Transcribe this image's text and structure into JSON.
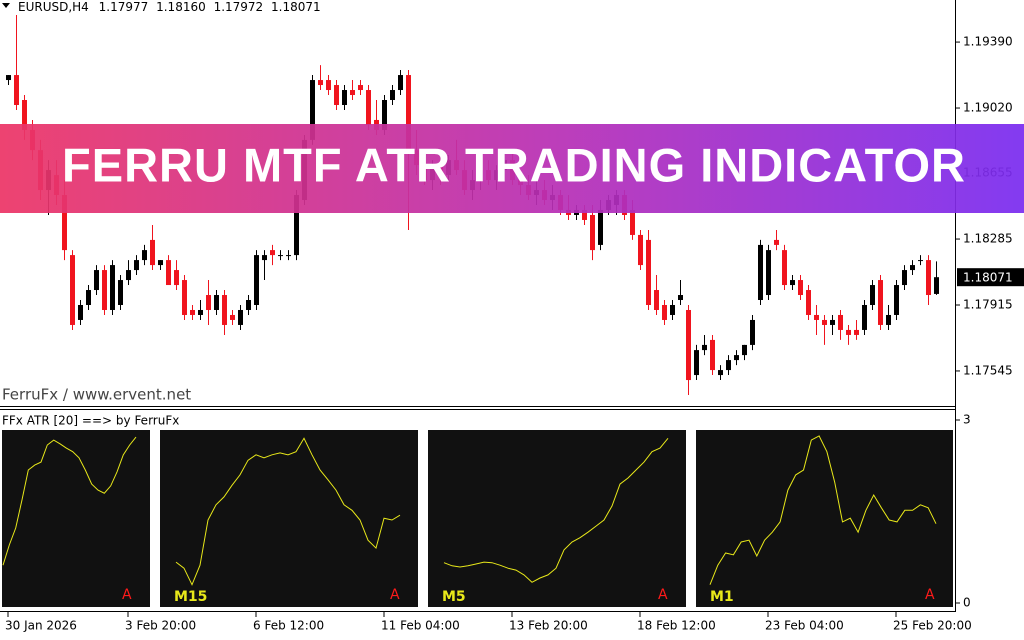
{
  "banner": {
    "title": "FERRU MTF ATR TRADING INDICATOR"
  },
  "chart_data": [
    {
      "type": "candlestick",
      "symbol": "EURUSD,H4",
      "header_values": [
        "1.17977",
        "1.18160",
        "1.17972",
        "1.18071"
      ],
      "annotation": "FerruFx / www.ervent.net",
      "up_color": "#000000",
      "down_color": "#f0141e",
      "categories": [
        "30 Jan 2026",
        null,
        null,
        null,
        null,
        null,
        null,
        null,
        null,
        null,
        null,
        null,
        null,
        null,
        null,
        "3 Feb 20:00",
        null,
        null,
        null,
        null,
        null,
        null,
        null,
        null,
        null,
        null,
        null,
        null,
        null,
        null,
        null,
        "6 Feb 12:00",
        null,
        null,
        null,
        null,
        null,
        null,
        null,
        null,
        null,
        null,
        null,
        null,
        null,
        null,
        null,
        "11 Feb 04:00",
        null,
        null,
        null,
        null,
        null,
        null,
        null,
        null,
        null,
        null,
        null,
        null,
        null,
        null,
        null,
        "13 Feb 20:00",
        null,
        null,
        null,
        null,
        null,
        null,
        null,
        null,
        null,
        null,
        null,
        null,
        null,
        null,
        null,
        "18 Feb 12:00",
        null,
        null,
        null,
        null,
        null,
        null,
        null,
        null,
        null,
        null,
        null,
        null,
        null,
        null,
        null,
        "23 Feb 04:00",
        null,
        null,
        null,
        null,
        null,
        null,
        null,
        null,
        null,
        null,
        null,
        null,
        null,
        null,
        null,
        "25 Feb 20:00",
        null,
        null,
        null,
        null,
        null
      ],
      "open": [
        1.19177,
        1.19205,
        1.19065,
        1.18897,
        1.18784,
        1.1856,
        1.18644,
        1.18532,
        1.18195,
        1.17831,
        1.17915,
        1.17999,
        1.18111,
        1.17887,
        1.17915,
        1.18055,
        1.18111,
        1.18167,
        1.1828,
        1.18139,
        1.18167,
        1.18111,
        1.18055,
        1.17887,
        1.17859,
        1.17971,
        1.17887,
        1.17971,
        1.17859,
        1.17803,
        1.17887,
        1.17915,
        1.18167,
        1.18223,
        1.18195,
        1.18195,
        1.18195,
        1.18504,
        1.18841,
        1.19177,
        1.19177,
        1.19149,
        1.19037,
        1.19121,
        1.19149,
        1.19121,
        1.18953,
        1.18897,
        1.19065,
        1.19121,
        1.19205,
        1.18784,
        1.187,
        1.18616,
        1.187,
        1.18644,
        1.18728,
        1.18672,
        1.1856,
        1.18616,
        1.18672,
        1.18616,
        1.18672,
        1.18728,
        1.18616,
        1.18588,
        1.18532,
        1.1856,
        1.18504,
        1.18532,
        1.18448,
        1.1842,
        1.18448,
        1.1842,
        1.18252,
        1.18448,
        1.18476,
        1.18532,
        1.18448,
        1.18308,
        1.1828,
        1.17999,
        1.17915,
        1.17859,
        1.17943,
        1.17887,
        1.17522,
        1.17662,
        1.17719,
        1.17522,
        1.1755,
        1.17606,
        1.17634,
        1.17691,
        1.17943,
        1.17971,
        1.1828,
        1.18223,
        1.18027,
        1.18055,
        1.17999,
        1.17859,
        1.17831,
        1.17803,
        1.17859,
        1.17775,
        1.17775,
        1.17775,
        1.17915,
        1.18055,
        1.17803,
        1.17859,
        1.18027,
        1.18111,
        1.18167,
        1.18167,
        1.17977
      ],
      "high": [
        1.19205,
        1.19542,
        1.19093,
        1.18953,
        1.18841,
        1.18728,
        1.18728,
        1.18616,
        1.18223,
        1.17943,
        1.18027,
        1.18139,
        1.18139,
        1.18167,
        1.18083,
        1.18167,
        1.18195,
        1.18252,
        1.18364,
        1.18167,
        1.18195,
        1.18167,
        1.18083,
        1.17915,
        1.17943,
        1.18055,
        1.17999,
        1.17999,
        1.17887,
        1.17915,
        1.17971,
        1.18223,
        1.18223,
        1.18252,
        1.18223,
        1.18223,
        1.1856,
        1.18869,
        1.19205,
        1.19261,
        1.19205,
        1.19177,
        1.19149,
        1.19177,
        1.19177,
        1.19149,
        1.19065,
        1.19093,
        1.19149,
        1.19233,
        1.19233,
        1.18897,
        1.18784,
        1.18728,
        1.18784,
        1.18756,
        1.18841,
        1.18728,
        1.18672,
        1.187,
        1.18728,
        1.187,
        1.18784,
        1.18784,
        1.18672,
        1.18644,
        1.18616,
        1.18616,
        1.18588,
        1.1856,
        1.18532,
        1.18476,
        1.18476,
        1.18476,
        1.18504,
        1.18532,
        1.1856,
        1.1856,
        1.18504,
        1.18336,
        1.18336,
        1.18083,
        1.17943,
        1.17943,
        1.18055,
        1.17915,
        1.17691,
        1.17747,
        1.17747,
        1.17578,
        1.17634,
        1.17662,
        1.17691,
        1.17859,
        1.1828,
        1.18252,
        1.18336,
        1.18252,
        1.18083,
        1.18083,
        1.18027,
        1.17915,
        1.17859,
        1.17859,
        1.17887,
        1.17803,
        1.17831,
        1.17943,
        1.18055,
        1.18083,
        1.17915,
        1.18055,
        1.18139,
        1.18167,
        1.18195,
        1.18195,
        1.1816
      ],
      "low": [
        1.19149,
        1.19009,
        1.18841,
        1.18728,
        1.18504,
        1.1842,
        1.18476,
        1.18167,
        1.17775,
        1.17803,
        1.17887,
        1.17971,
        1.17859,
        1.17859,
        1.17887,
        1.18027,
        1.18083,
        1.18139,
        1.18111,
        1.18111,
        1.18027,
        1.17999,
        1.17831,
        1.17831,
        1.17831,
        1.17803,
        1.17859,
        1.17747,
        1.17803,
        1.17775,
        1.17859,
        1.17887,
        1.18055,
        1.18139,
        1.18167,
        1.18167,
        1.18167,
        1.18476,
        1.18813,
        1.19121,
        1.19093,
        1.19009,
        1.19009,
        1.19065,
        1.19093,
        1.18897,
        1.18869,
        1.18869,
        1.19037,
        1.19093,
        1.18336,
        1.18644,
        1.18588,
        1.1856,
        1.18588,
        1.18616,
        1.18644,
        1.18532,
        1.18504,
        1.1856,
        1.18588,
        1.1856,
        1.18616,
        1.18588,
        1.18532,
        1.18504,
        1.18476,
        1.18476,
        1.18448,
        1.1842,
        1.18392,
        1.18392,
        1.18364,
        1.18167,
        1.18223,
        1.1842,
        1.1842,
        1.18392,
        1.1828,
        1.18111,
        1.17887,
        1.17859,
        1.17803,
        1.17831,
        1.17915,
        1.1741,
        1.17494,
        1.17634,
        1.17522,
        1.17494,
        1.17522,
        1.17578,
        1.17606,
        1.17662,
        1.17915,
        1.17943,
        1.18223,
        1.17999,
        1.17999,
        1.17943,
        1.17831,
        1.17747,
        1.17691,
        1.17747,
        1.17719,
        1.17691,
        1.17719,
        1.17747,
        1.17887,
        1.17775,
        1.17775,
        1.17831,
        1.17999,
        1.18083,
        1.18139,
        1.17915,
        1.17972
      ],
      "close": [
        1.19205,
        1.19037,
        1.18897,
        1.18784,
        1.1856,
        1.18672,
        1.18532,
        1.18223,
        1.17803,
        1.17915,
        1.17999,
        1.18111,
        1.17887,
        1.18139,
        1.18055,
        1.18111,
        1.18167,
        1.18223,
        1.18139,
        1.18167,
        1.18027,
        1.18027,
        1.17859,
        1.17859,
        1.17887,
        1.17887,
        1.17971,
        1.17803,
        1.17831,
        1.17887,
        1.17943,
        1.18195,
        1.18195,
        1.18195,
        1.18195,
        1.18195,
        1.18532,
        1.18841,
        1.19177,
        1.19149,
        1.19121,
        1.19037,
        1.19121,
        1.19093,
        1.19121,
        1.18925,
        1.18897,
        1.19065,
        1.19121,
        1.19205,
        1.18784,
        1.187,
        1.18616,
        1.187,
        1.18644,
        1.18728,
        1.18672,
        1.1856,
        1.18616,
        1.18672,
        1.18616,
        1.18672,
        1.18728,
        1.18616,
        1.18588,
        1.18532,
        1.1856,
        1.18504,
        1.18532,
        1.18448,
        1.1842,
        1.18448,
        1.18392,
        1.18223,
        1.18448,
        1.18504,
        1.18532,
        1.1842,
        1.18308,
        1.18139,
        1.17915,
        1.17887,
        1.17831,
        1.17915,
        1.17971,
        1.17494,
        1.17662,
        1.17691,
        1.1755,
        1.1755,
        1.17606,
        1.17634,
        1.17691,
        1.17831,
        1.18252,
        1.18223,
        1.18252,
        1.18027,
        1.18055,
        1.17971,
        1.17859,
        1.17831,
        1.17803,
        1.17831,
        1.17775,
        1.17747,
        1.17747,
        1.17915,
        1.18027,
        1.17803,
        1.17859,
        1.18027,
        1.18111,
        1.18139,
        1.18167,
        1.17971,
        1.18071
      ],
      "current_price": 1.18071,
      "ylim": [
        1.17354,
        1.19626
      ],
      "yticks": [
        {
          "value": 1.1939,
          "label": "1.19390"
        },
        {
          "value": 1.1902,
          "label": "1.19020"
        },
        1.18655,
        1.18285,
        1.17915,
        1.17545
      ]
    },
    {
      "type": "line",
      "title": "FFx ATR [20] ==> by FerruFx",
      "ylim": [
        0,
        3
      ],
      "yticks": [
        0,
        3
      ],
      "panel_color": "#111111",
      "series": [
        {
          "color": "#e8e81a",
          "flag": "A",
          "flag_color": "#ff1a1a",
          "values": [
            0.62,
            0.95,
            1.23,
            1.69,
            2.18,
            2.26,
            2.31,
            2.59,
            2.67,
            2.61,
            2.54,
            2.48,
            2.38,
            2.18,
            1.95,
            1.85,
            1.8,
            1.92,
            2.15,
            2.43,
            2.59,
            2.72
          ]
        },
        {
          "name": "M15",
          "color": "#e8e81a",
          "flag": "A",
          "flag_color": "#ff1a1a",
          "values": [
            0.67,
            0.57,
            0.3,
            0.62,
            1.36,
            1.61,
            1.74,
            1.93,
            2.1,
            2.34,
            2.43,
            2.38,
            2.43,
            2.46,
            2.43,
            2.48,
            2.7,
            2.43,
            2.18,
            2.02,
            1.85,
            1.61,
            1.52,
            1.36,
            1.03,
            0.9,
            1.39,
            1.36,
            1.44
          ]
        },
        {
          "name": "M5",
          "color": "#e8e81a",
          "flag": "A",
          "flag_color": "#ff1a1a",
          "values": [
            0.66,
            0.61,
            0.59,
            0.61,
            0.64,
            0.67,
            0.66,
            0.62,
            0.57,
            0.54,
            0.46,
            0.34,
            0.41,
            0.46,
            0.57,
            0.87,
            1.0,
            1.07,
            1.16,
            1.26,
            1.36,
            1.59,
            1.95,
            2.05,
            2.18,
            2.31,
            2.48,
            2.54,
            2.7
          ]
        },
        {
          "name": "M1",
          "color": "#e8e81a",
          "flag": "A",
          "flag_color": "#ff1a1a",
          "values": [
            0.3,
            0.62,
            0.82,
            0.79,
            1.0,
            1.03,
            0.77,
            1.03,
            1.16,
            1.33,
            1.85,
            2.1,
            2.18,
            2.67,
            2.74,
            2.48,
            1.98,
            1.33,
            1.39,
            1.16,
            1.52,
            1.77,
            1.56,
            1.36,
            1.33,
            1.52,
            1.52,
            1.61,
            1.56,
            1.3
          ]
        }
      ]
    }
  ]
}
